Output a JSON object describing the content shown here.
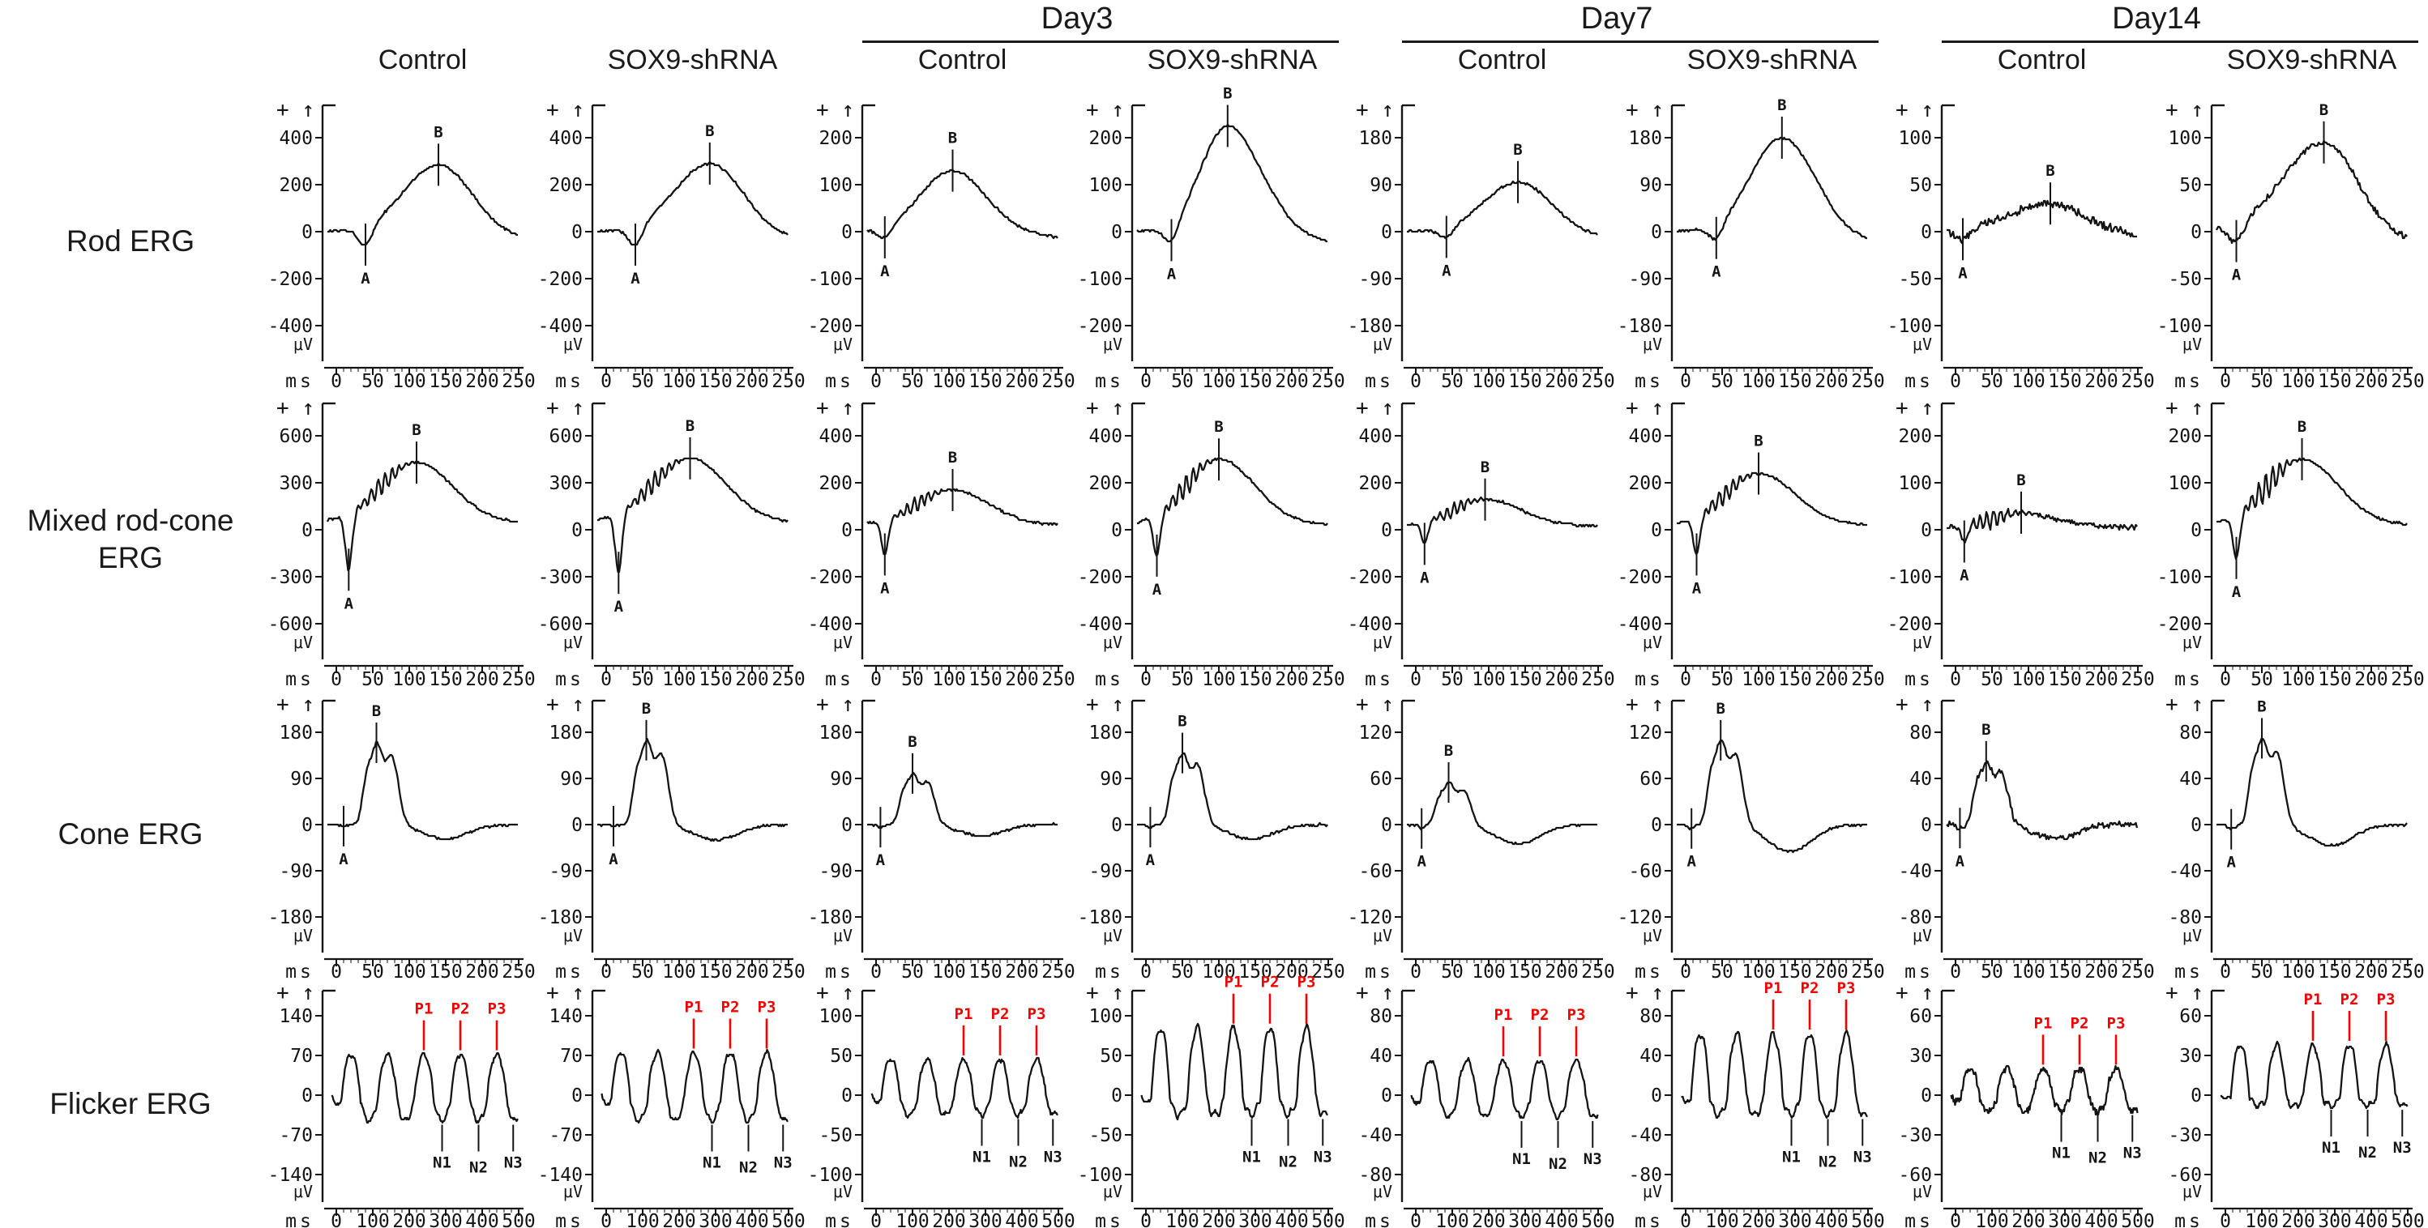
{
  "figure": {
    "day_groups": [
      {
        "label": "Day3"
      },
      {
        "label": "Day7"
      },
      {
        "label": "Day14"
      }
    ],
    "conditions": [
      "Control",
      "SOX9-shRNA",
      "Control",
      "SOX9-shRNA",
      "Control",
      "SOX9-shRNA",
      "Control",
      "SOX9-shRNA"
    ],
    "row_labels": [
      [
        "Rod ERG"
      ],
      [
        "Mixed rod-cone",
        "ERG"
      ],
      [
        "Cone ERG"
      ],
      [
        "Flicker ERG"
      ]
    ],
    "axis": {
      "x_unit": "ms",
      "y_unit": "μV",
      "polarity": "+ ↑"
    },
    "colors": {
      "trace": "#141414",
      "positive_peak_marker": "#f10000",
      "text": "#1a1a1a"
    }
  },
  "chart_data": [
    {
      "row": "Rod ERG",
      "group": "",
      "condition": "Control",
      "type": "line",
      "waveform": "rod",
      "x_unit": "ms",
      "y_unit": "μV",
      "xticks": [
        0,
        50,
        100,
        150,
        200,
        250
      ],
      "yticks": [
        400,
        200,
        0,
        -200,
        -400
      ],
      "markers": {
        "A": {
          "t": 40,
          "v": -55
        },
        "B": {
          "t": 140,
          "v": 285
        }
      }
    },
    {
      "row": "Rod ERG",
      "group": "",
      "condition": "SOX9-shRNA",
      "type": "line",
      "waveform": "rod",
      "x_unit": "ms",
      "y_unit": "μV",
      "xticks": [
        0,
        50,
        100,
        150,
        200,
        250
      ],
      "yticks": [
        400,
        200,
        0,
        -200,
        -400
      ],
      "markers": {
        "A": {
          "t": 40,
          "v": -55
        },
        "B": {
          "t": 142,
          "v": 290
        }
      }
    },
    {
      "row": "Rod ERG",
      "group": "Day3",
      "condition": "Control",
      "type": "line",
      "waveform": "rod",
      "x_unit": "ms",
      "y_unit": "μV",
      "xticks": [
        0,
        50,
        100,
        150,
        200,
        250
      ],
      "yticks": [
        200,
        100,
        0,
        -100,
        -200
      ],
      "markers": {
        "A": {
          "t": 12,
          "v": -12
        },
        "B": {
          "t": 105,
          "v": 130
        }
      }
    },
    {
      "row": "Rod ERG",
      "group": "Day3",
      "condition": "SOX9-shRNA",
      "type": "line",
      "waveform": "rod",
      "x_unit": "ms",
      "y_unit": "μV",
      "xticks": [
        0,
        50,
        100,
        150,
        200,
        250
      ],
      "yticks": [
        200,
        100,
        0,
        -100,
        -200
      ],
      "markers": {
        "A": {
          "t": 35,
          "v": -18
        },
        "B": {
          "t": 112,
          "v": 225
        }
      }
    },
    {
      "row": "Rod ERG",
      "group": "Day7",
      "condition": "Control",
      "type": "line",
      "waveform": "rod",
      "x_unit": "ms",
      "y_unit": "μV",
      "xticks": [
        0,
        50,
        100,
        150,
        200,
        250
      ],
      "yticks": [
        180,
        90,
        0,
        -90,
        -180
      ],
      "markers": {
        "A": {
          "t": 42,
          "v": -10
        },
        "B": {
          "t": 140,
          "v": 95
        }
      }
    },
    {
      "row": "Rod ERG",
      "group": "Day7",
      "condition": "SOX9-shRNA",
      "type": "line",
      "waveform": "rod",
      "x_unit": "ms",
      "y_unit": "μV",
      "xticks": [
        0,
        50,
        100,
        150,
        200,
        250
      ],
      "yticks": [
        180,
        90,
        0,
        -90,
        -180
      ],
      "markers": {
        "A": {
          "t": 42,
          "v": -12
        },
        "B": {
          "t": 132,
          "v": 180
        }
      }
    },
    {
      "row": "Rod ERG",
      "group": "Day14",
      "condition": "Control",
      "type": "line",
      "waveform": "rod",
      "x_unit": "ms",
      "y_unit": "μV",
      "xticks": [
        0,
        50,
        100,
        150,
        200,
        250
      ],
      "yticks": [
        100,
        50,
        0,
        -50,
        -100
      ],
      "noise": 4,
      "markers": {
        "A": {
          "t": 10,
          "v": -8
        },
        "B": {
          "t": 130,
          "v": 30
        }
      }
    },
    {
      "row": "Rod ERG",
      "group": "Day14",
      "condition": "SOX9-shRNA",
      "type": "line",
      "waveform": "rod",
      "x_unit": "ms",
      "y_unit": "μV",
      "xticks": [
        0,
        50,
        100,
        150,
        200,
        250
      ],
      "yticks": [
        100,
        50,
        0,
        -50,
        -100
      ],
      "noise": 3,
      "markers": {
        "A": {
          "t": 15,
          "v": -10
        },
        "B": {
          "t": 135,
          "v": 95
        }
      }
    },
    {
      "row": "Mixed rod-cone ERG",
      "group": "",
      "condition": "Control",
      "type": "line",
      "waveform": "mixed",
      "x_unit": "ms",
      "y_unit": "μV",
      "xticks": [
        0,
        50,
        100,
        150,
        200,
        250
      ],
      "yticks": [
        600,
        300,
        0,
        -300,
        -600
      ],
      "start": 45,
      "markers": {
        "A": {
          "t": 17,
          "v": -255
        },
        "B": {
          "t": 110,
          "v": 430
        }
      }
    },
    {
      "row": "Mixed rod-cone ERG",
      "group": "",
      "condition": "SOX9-shRNA",
      "type": "line",
      "waveform": "mixed",
      "x_unit": "ms",
      "y_unit": "μV",
      "xticks": [
        0,
        50,
        100,
        150,
        200,
        250
      ],
      "yticks": [
        600,
        300,
        0,
        -300,
        -600
      ],
      "start": 45,
      "markers": {
        "A": {
          "t": 17,
          "v": -275
        },
        "B": {
          "t": 115,
          "v": 455
        }
      }
    },
    {
      "row": "Mixed rod-cone ERG",
      "group": "Day3",
      "condition": "Control",
      "type": "line",
      "waveform": "mixed",
      "x_unit": "ms",
      "y_unit": "μV",
      "xticks": [
        0,
        50,
        100,
        150,
        200,
        250
      ],
      "yticks": [
        400,
        200,
        0,
        -200,
        -400
      ],
      "start": 20,
      "markers": {
        "A": {
          "t": 12,
          "v": -105
        },
        "B": {
          "t": 105,
          "v": 170
        }
      }
    },
    {
      "row": "Mixed rod-cone ERG",
      "group": "Day3",
      "condition": "SOX9-shRNA",
      "type": "line",
      "waveform": "mixed",
      "x_unit": "ms",
      "y_unit": "μV",
      "xticks": [
        0,
        50,
        100,
        150,
        200,
        250
      ],
      "yticks": [
        400,
        200,
        0,
        -200,
        -400
      ],
      "start": 20,
      "markers": {
        "A": {
          "t": 15,
          "v": -110
        },
        "B": {
          "t": 100,
          "v": 300
        }
      }
    },
    {
      "row": "Mixed rod-cone ERG",
      "group": "Day7",
      "condition": "Control",
      "type": "line",
      "waveform": "mixed",
      "x_unit": "ms",
      "y_unit": "μV",
      "xticks": [
        0,
        50,
        100,
        150,
        200,
        250
      ],
      "yticks": [
        400,
        200,
        0,
        -200,
        -400
      ],
      "start": 15,
      "markers": {
        "A": {
          "t": 12,
          "v": -60
        },
        "B": {
          "t": 95,
          "v": 130
        }
      }
    },
    {
      "row": "Mixed rod-cone ERG",
      "group": "Day7",
      "condition": "SOX9-shRNA",
      "type": "line",
      "waveform": "mixed",
      "x_unit": "ms",
      "y_unit": "μV",
      "xticks": [
        0,
        50,
        100,
        150,
        200,
        250
      ],
      "yticks": [
        400,
        200,
        0,
        -200,
        -400
      ],
      "start": 20,
      "markers": {
        "A": {
          "t": 15,
          "v": -105
        },
        "B": {
          "t": 100,
          "v": 240
        }
      }
    },
    {
      "row": "Mixed rod-cone ERG",
      "group": "Day14",
      "condition": "Control",
      "type": "line",
      "waveform": "mixed",
      "x_unit": "ms",
      "y_unit": "μV",
      "xticks": [
        0,
        50,
        100,
        150,
        200,
        250
      ],
      "yticks": [
        200,
        100,
        0,
        -100,
        -200
      ],
      "start": 5,
      "noise": 5,
      "markers": {
        "A": {
          "t": 12,
          "v": -25
        },
        "B": {
          "t": 90,
          "v": 35
        }
      }
    },
    {
      "row": "Mixed rod-cone ERG",
      "group": "Day14",
      "condition": "SOX9-shRNA",
      "type": "line",
      "waveform": "mixed",
      "x_unit": "ms",
      "y_unit": "μV",
      "xticks": [
        0,
        50,
        100,
        150,
        200,
        250
      ],
      "yticks": [
        200,
        100,
        0,
        -100,
        -200
      ],
      "start": 10,
      "markers": {
        "A": {
          "t": 15,
          "v": -60
        },
        "B": {
          "t": 105,
          "v": 150
        }
      }
    },
    {
      "row": "Cone ERG",
      "group": "",
      "condition": "Control",
      "type": "line",
      "waveform": "cone",
      "x_unit": "ms",
      "y_unit": "μV",
      "xticks": [
        0,
        50,
        100,
        150,
        200,
        250
      ],
      "yticks": [
        180,
        90,
        0,
        -90,
        -180
      ],
      "undershoot": 28,
      "markers": {
        "A": {
          "t": 10,
          "v": -3
        },
        "B": {
          "t": 55,
          "v": 160
        }
      }
    },
    {
      "row": "Cone ERG",
      "group": "",
      "condition": "SOX9-shRNA",
      "type": "line",
      "waveform": "cone",
      "x_unit": "ms",
      "y_unit": "μV",
      "xticks": [
        0,
        50,
        100,
        150,
        200,
        250
      ],
      "yticks": [
        180,
        90,
        0,
        -90,
        -180
      ],
      "undershoot": 30,
      "markers": {
        "A": {
          "t": 10,
          "v": -3
        },
        "B": {
          "t": 55,
          "v": 165
        }
      }
    },
    {
      "row": "Cone ERG",
      "group": "Day3",
      "condition": "Control",
      "type": "line",
      "waveform": "cone",
      "x_unit": "ms",
      "y_unit": "μV",
      "xticks": [
        0,
        50,
        100,
        150,
        200,
        250
      ],
      "yticks": [
        180,
        90,
        0,
        -90,
        -180
      ],
      "undershoot": 22,
      "markers": {
        "A": {
          "t": 6,
          "v": -5
        },
        "B": {
          "t": 50,
          "v": 100
        }
      }
    },
    {
      "row": "Cone ERG",
      "group": "Day3",
      "condition": "SOX9-shRNA",
      "type": "line",
      "waveform": "cone",
      "x_unit": "ms",
      "y_unit": "μV",
      "xticks": [
        0,
        50,
        100,
        150,
        200,
        250
      ],
      "yticks": [
        180,
        90,
        0,
        -90,
        -180
      ],
      "undershoot": 28,
      "markers": {
        "A": {
          "t": 6,
          "v": -5
        },
        "B": {
          "t": 50,
          "v": 140
        }
      }
    },
    {
      "row": "Cone ERG",
      "group": "Day7",
      "condition": "Control",
      "type": "line",
      "waveform": "cone",
      "x_unit": "ms",
      "y_unit": "μV",
      "xticks": [
        0,
        50,
        100,
        150,
        200,
        250
      ],
      "yticks": [
        120,
        60,
        0,
        -60,
        -120
      ],
      "undershoot": 25,
      "markers": {
        "A": {
          "t": 8,
          "v": -5
        },
        "B": {
          "t": 45,
          "v": 55
        }
      }
    },
    {
      "row": "Cone ERG",
      "group": "Day7",
      "condition": "SOX9-shRNA",
      "type": "line",
      "waveform": "cone",
      "x_unit": "ms",
      "y_unit": "μV",
      "xticks": [
        0,
        50,
        100,
        150,
        200,
        250
      ],
      "yticks": [
        120,
        60,
        0,
        -60,
        -120
      ],
      "undershoot": 35,
      "markers": {
        "A": {
          "t": 8,
          "v": -5
        },
        "B": {
          "t": 48,
          "v": 110
        }
      }
    },
    {
      "row": "Cone ERG",
      "group": "Day14",
      "condition": "Control",
      "type": "line",
      "waveform": "cone",
      "x_unit": "ms",
      "y_unit": "μV",
      "xticks": [
        0,
        50,
        100,
        150,
        200,
        250
      ],
      "yticks": [
        80,
        40,
        0,
        -40,
        -80
      ],
      "undershoot": 12,
      "noise": 2.5,
      "markers": {
        "A": {
          "t": 6,
          "v": -3
        },
        "B": {
          "t": 42,
          "v": 55
        }
      }
    },
    {
      "row": "Cone ERG",
      "group": "Day14",
      "condition": "SOX9-shRNA",
      "type": "line",
      "waveform": "cone",
      "x_unit": "ms",
      "y_unit": "μV",
      "xticks": [
        0,
        50,
        100,
        150,
        200,
        250
      ],
      "yticks": [
        80,
        40,
        0,
        -40,
        -80
      ],
      "undershoot": 18,
      "markers": {
        "A": {
          "t": 8,
          "v": -4
        },
        "B": {
          "t": 50,
          "v": 75
        }
      }
    },
    {
      "row": "Flicker ERG",
      "group": "",
      "condition": "Control",
      "type": "line",
      "waveform": "flicker",
      "x_unit": "ms",
      "y_unit": "μV",
      "xticks": [
        0,
        100,
        200,
        300,
        400,
        500
      ],
      "yticks": [
        140,
        70,
        0,
        -70,
        -140
      ],
      "p_amp": 72,
      "n_amp": -45,
      "peak_labels": [
        "P1",
        "P2",
        "P3"
      ],
      "trough_labels": [
        "N1",
        "N2",
        "N3"
      ],
      "peak_times": [
        240,
        340,
        440
      ],
      "trough_times": [
        290,
        390,
        485
      ]
    },
    {
      "row": "Flicker ERG",
      "group": "",
      "condition": "SOX9-shRNA",
      "type": "line",
      "waveform": "flicker",
      "x_unit": "ms",
      "y_unit": "μV",
      "xticks": [
        0,
        100,
        200,
        300,
        400,
        500
      ],
      "yticks": [
        140,
        70,
        0,
        -70,
        -140
      ],
      "p_amp": 75,
      "n_amp": -45,
      "peak_labels": [
        "P1",
        "P2",
        "P3"
      ],
      "trough_labels": [
        "N1",
        "N2",
        "N3"
      ],
      "peak_times": [
        240,
        340,
        440
      ],
      "trough_times": [
        290,
        390,
        485
      ]
    },
    {
      "row": "Flicker ERG",
      "group": "Day3",
      "condition": "Control",
      "type": "line",
      "waveform": "flicker",
      "x_unit": "ms",
      "y_unit": "μV",
      "xticks": [
        0,
        100,
        200,
        300,
        400,
        500
      ],
      "yticks": [
        100,
        50,
        0,
        -50,
        -100
      ],
      "p_amp": 45,
      "n_amp": -25,
      "peak_labels": [
        "P1",
        "P2",
        "P3"
      ],
      "trough_labels": [
        "N1",
        "N2",
        "N3"
      ],
      "peak_times": [
        240,
        340,
        440
      ],
      "trough_times": [
        290,
        390,
        485
      ]
    },
    {
      "row": "Flicker ERG",
      "group": "Day3",
      "condition": "SOX9-shRNA",
      "type": "line",
      "waveform": "flicker",
      "x_unit": "ms",
      "y_unit": "μV",
      "xticks": [
        0,
        100,
        200,
        300,
        400,
        500
      ],
      "yticks": [
        100,
        50,
        0,
        -50,
        -100
      ],
      "p_amp": 85,
      "n_amp": -25,
      "peak_labels": [
        "P1",
        "P2",
        "P3"
      ],
      "trough_labels": [
        "N1",
        "N2",
        "N3"
      ],
      "peak_times": [
        240,
        340,
        440
      ],
      "trough_times": [
        290,
        390,
        485
      ]
    },
    {
      "row": "Flicker ERG",
      "group": "Day7",
      "condition": "Control",
      "type": "line",
      "waveform": "flicker",
      "x_unit": "ms",
      "y_unit": "μV",
      "xticks": [
        0,
        100,
        200,
        300,
        400,
        500
      ],
      "yticks": [
        80,
        40,
        0,
        -40,
        -80
      ],
      "p_amp": 35,
      "n_amp": -22,
      "peak_labels": [
        "P1",
        "P2",
        "P3"
      ],
      "trough_labels": [
        "N1",
        "N2",
        "N3"
      ],
      "peak_times": [
        240,
        340,
        440
      ],
      "trough_times": [
        290,
        390,
        485
      ]
    },
    {
      "row": "Flicker ERG",
      "group": "Day7",
      "condition": "SOX9-shRNA",
      "type": "line",
      "waveform": "flicker",
      "x_unit": "ms",
      "y_unit": "μV",
      "xticks": [
        0,
        100,
        200,
        300,
        400,
        500
      ],
      "yticks": [
        80,
        40,
        0,
        -40,
        -80
      ],
      "p_amp": 62,
      "n_amp": -20,
      "peak_labels": [
        "P1",
        "P2",
        "P3"
      ],
      "trough_labels": [
        "N1",
        "N2",
        "N3"
      ],
      "peak_times": [
        240,
        340,
        440
      ],
      "trough_times": [
        290,
        390,
        485
      ]
    },
    {
      "row": "Flicker ERG",
      "group": "Day14",
      "condition": "Control",
      "type": "line",
      "waveform": "flicker",
      "x_unit": "ms",
      "y_unit": "μV",
      "xticks": [
        0,
        100,
        200,
        300,
        400,
        500
      ],
      "yticks": [
        60,
        30,
        0,
        -30,
        -60
      ],
      "p_amp": 20,
      "n_amp": -12,
      "noise": 2.5,
      "peak_labels": [
        "P1",
        "P2",
        "P3"
      ],
      "trough_labels": [
        "N1",
        "N2",
        "N3"
      ],
      "peak_times": [
        240,
        340,
        440
      ],
      "trough_times": [
        290,
        390,
        485
      ]
    },
    {
      "row": "Flicker ERG",
      "group": "Day14",
      "condition": "SOX9-shRNA",
      "type": "line",
      "waveform": "flicker",
      "x_unit": "ms",
      "y_unit": "μV",
      "xticks": [
        0,
        100,
        200,
        300,
        400,
        500
      ],
      "yticks": [
        60,
        30,
        0,
        -30,
        -60
      ],
      "p_amp": 38,
      "n_amp": -8,
      "peak_labels": [
        "P1",
        "P2",
        "P3"
      ],
      "trough_labels": [
        "N1",
        "N2",
        "N3"
      ],
      "peak_times": [
        240,
        340,
        440
      ],
      "trough_times": [
        290,
        390,
        485
      ]
    }
  ]
}
